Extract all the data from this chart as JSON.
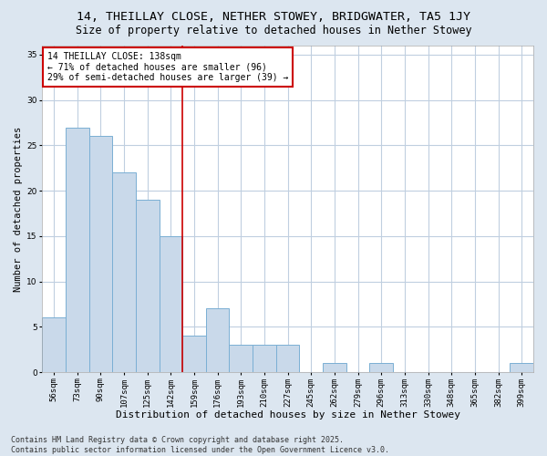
{
  "title_line1": "14, THEILLAY CLOSE, NETHER STOWEY, BRIDGWATER, TA5 1JY",
  "title_line2": "Size of property relative to detached houses in Nether Stowey",
  "xlabel": "Distribution of detached houses by size in Nether Stowey",
  "ylabel": "Number of detached properties",
  "categories": [
    "56sqm",
    "73sqm",
    "90sqm",
    "107sqm",
    "125sqm",
    "142sqm",
    "159sqm",
    "176sqm",
    "193sqm",
    "210sqm",
    "227sqm",
    "245sqm",
    "262sqm",
    "279sqm",
    "296sqm",
    "313sqm",
    "330sqm",
    "348sqm",
    "365sqm",
    "382sqm",
    "399sqm"
  ],
  "values": [
    6,
    27,
    26,
    22,
    19,
    15,
    4,
    7,
    3,
    3,
    3,
    0,
    1,
    0,
    1,
    0,
    0,
    0,
    0,
    0,
    1
  ],
  "bar_color": "#c9d9ea",
  "bar_edge_color": "#7aafd4",
  "vline_x": 5.5,
  "vline_color": "#cc0000",
  "annotation_text": "14 THEILLAY CLOSE: 138sqm\n← 71% of detached houses are smaller (96)\n29% of semi-detached houses are larger (39) →",
  "annotation_box_color": "#ffffff",
  "annotation_box_edge": "#cc0000",
  "ylim": [
    0,
    36
  ],
  "yticks": [
    0,
    5,
    10,
    15,
    20,
    25,
    30,
    35
  ],
  "figure_background_color": "#dce6f0",
  "plot_background_color": "#ffffff",
  "grid_color": "#c0cfe0",
  "footer_line1": "Contains HM Land Registry data © Crown copyright and database right 2025.",
  "footer_line2": "Contains public sector information licensed under the Open Government Licence v3.0.",
  "title_fontsize": 9.5,
  "subtitle_fontsize": 8.5,
  "xlabel_fontsize": 8,
  "ylabel_fontsize": 7.5,
  "tick_fontsize": 6.5,
  "annotation_fontsize": 7,
  "footer_fontsize": 6
}
